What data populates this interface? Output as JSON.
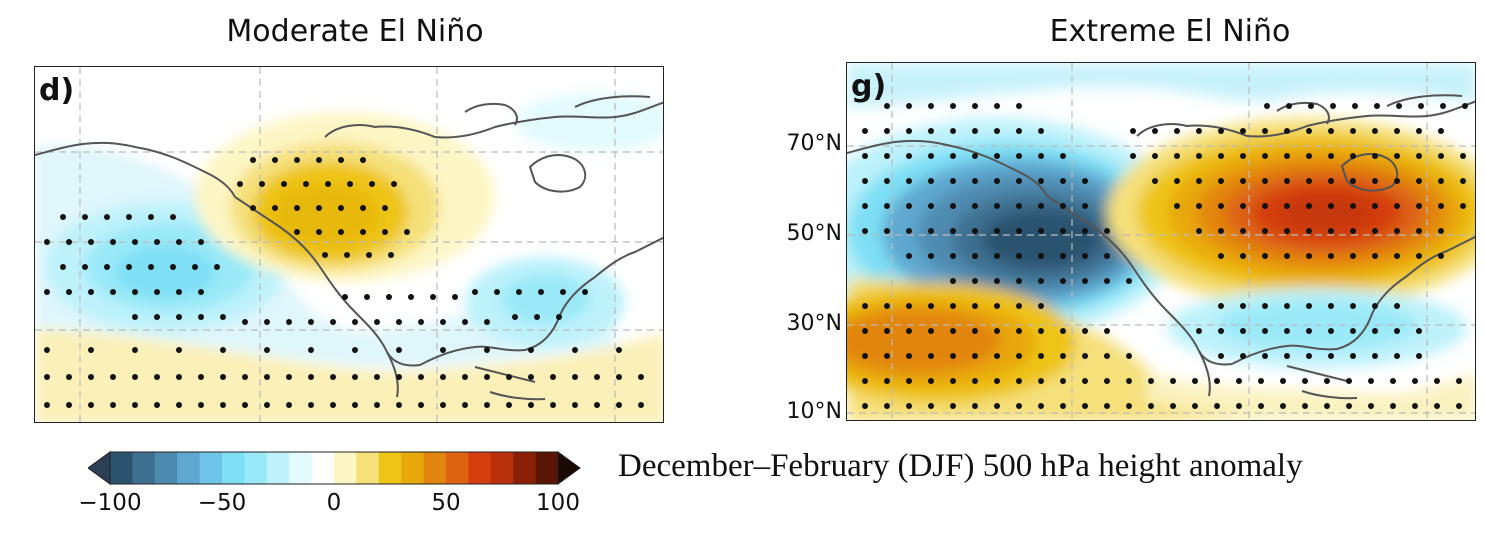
{
  "panels": [
    {
      "title": "Moderate El Niño",
      "label": "d)",
      "lat_labels": []
    },
    {
      "title": "Extreme El Niño",
      "label": "g)",
      "lat_labels": [
        "70°N",
        "50°N",
        "30°N",
        "10°N"
      ]
    }
  ],
  "colorbar": {
    "ticks": [
      "−100",
      "−50",
      "0",
      "50",
      "100"
    ],
    "colors": [
      "#2b5370",
      "#3d6f90",
      "#4f8bb0",
      "#5ea8d0",
      "#6ec4e8",
      "#7edff5",
      "#9ae9f8",
      "#bdf2fb",
      "#e3fbfd",
      "#ffffff",
      "#fdf6c4",
      "#f5e07a",
      "#eec416",
      "#e8a80c",
      "#e2850f",
      "#dd6212",
      "#d43e0e",
      "#b8300a",
      "#8a2006",
      "#5a1604"
    ],
    "left_end_color": "#2b3f55",
    "right_end_color": "#1a0a04"
  },
  "caption": "December–February (DJF) 500 hPa height anomaly"
}
